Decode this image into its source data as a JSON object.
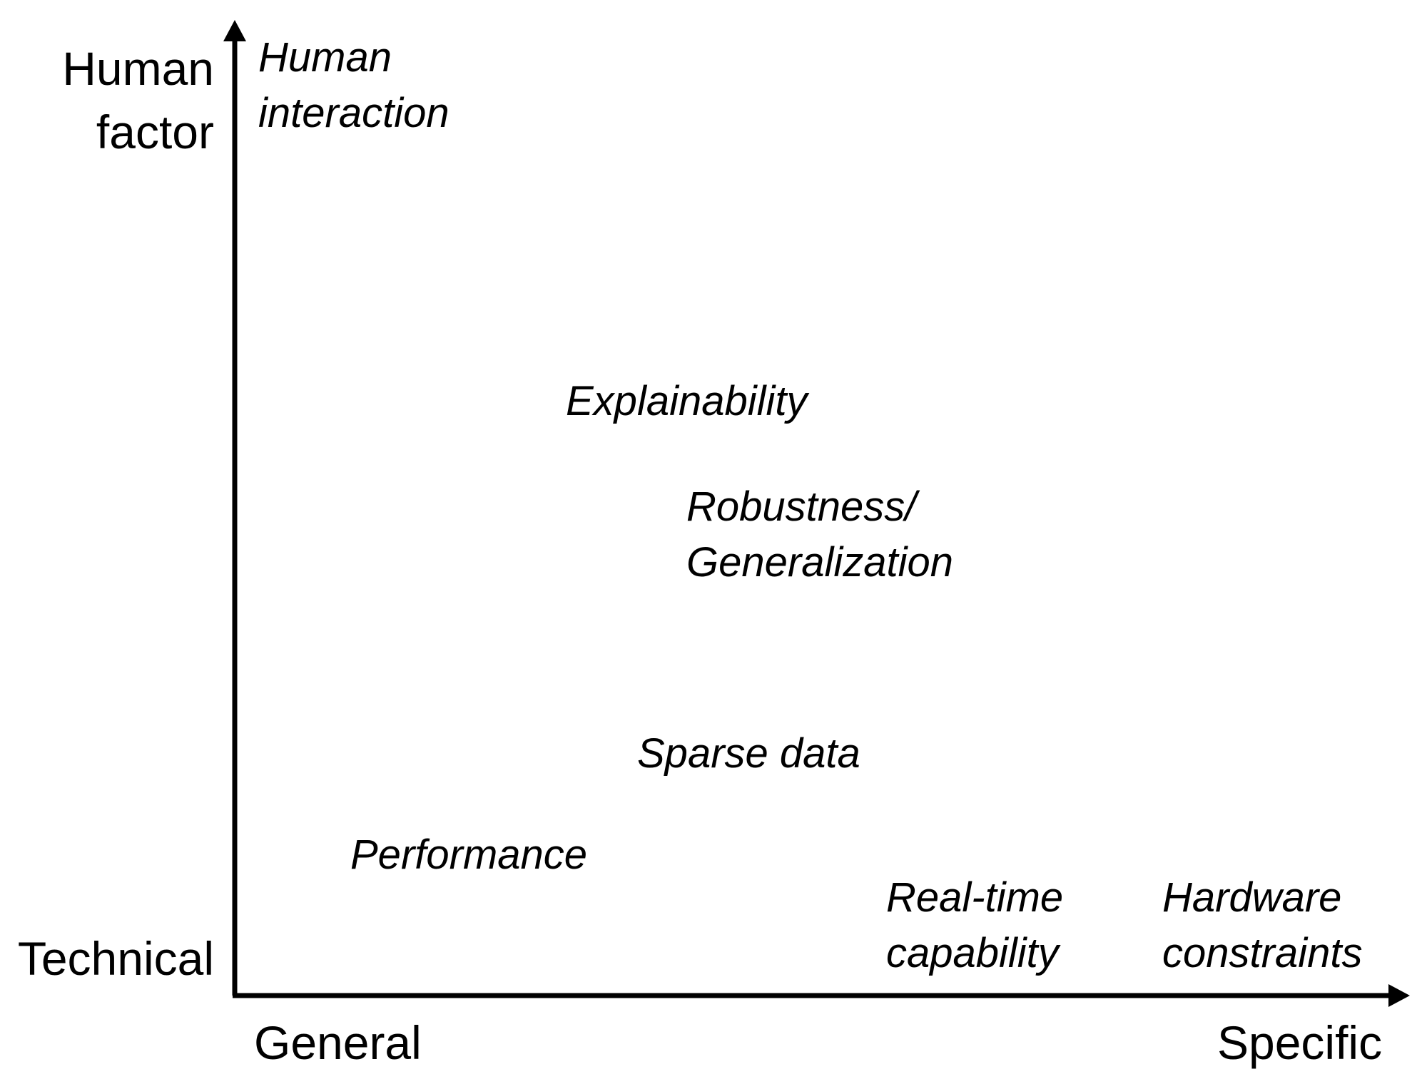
{
  "axes": {
    "y_top_label": [
      "Human",
      "factor"
    ],
    "y_bottom_label": "Technical",
    "x_left_label": "General",
    "x_right_label": "Specific"
  },
  "items": {
    "human_interaction": [
      "Human",
      "interaction"
    ],
    "explainability": [
      "Explainability"
    ],
    "robustness": [
      "Robustness/",
      "Generalization"
    ],
    "sparse_data": [
      "Sparse data"
    ],
    "performance": [
      "Performance"
    ],
    "real_time": [
      "Real-time",
      "capability"
    ],
    "hardware": [
      "Hardware",
      "constraints"
    ]
  },
  "colors": {
    "axis": "#000000",
    "text": "#000000",
    "background": "#ffffff"
  }
}
